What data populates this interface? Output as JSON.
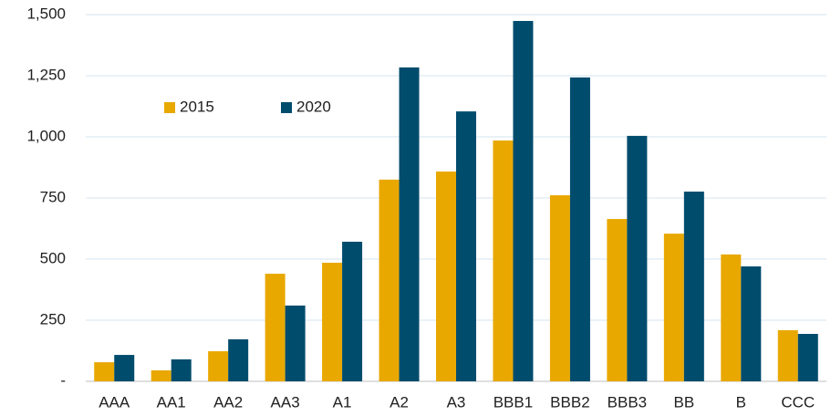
{
  "chart_data": {
    "type": "bar",
    "categories": [
      "AAA",
      "AA1",
      "AA2",
      "AA3",
      "A1",
      "A2",
      "A3",
      "BBB1",
      "BBB2",
      "BBB3",
      "BB",
      "B",
      "CCC"
    ],
    "series": [
      {
        "name": "2015",
        "color": "#e8a800",
        "values": [
          78,
          45,
          123,
          440,
          485,
          825,
          858,
          985,
          761,
          664,
          604,
          519,
          209
        ]
      },
      {
        "name": "2020",
        "color": "#004c6d",
        "values": [
          108,
          90,
          172,
          310,
          571,
          1284,
          1104,
          1474,
          1243,
          1004,
          776,
          470,
          194
        ]
      }
    ],
    "ylim": [
      0,
      1500
    ],
    "yticks": [
      {
        "value": 0,
        "label": "-"
      },
      250,
      500,
      750,
      {
        "value": 1000,
        "label": "1,000"
      },
      {
        "value": 1250,
        "label": "1,250"
      },
      {
        "value": 1500,
        "label": "1,500"
      }
    ],
    "grid": true,
    "legend": "upper left"
  }
}
